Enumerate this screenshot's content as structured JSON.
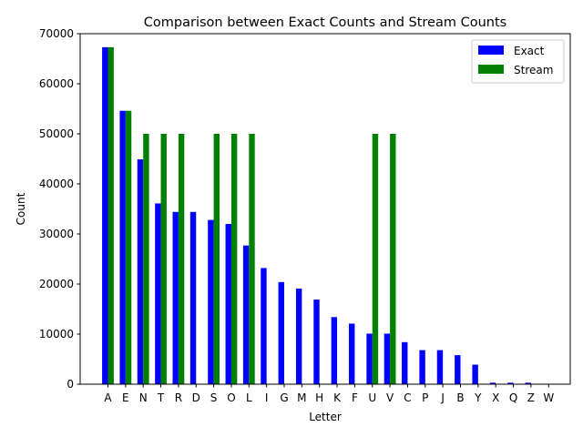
{
  "chart_data": {
    "type": "bar",
    "title": "Comparison between Exact Counts and Stream Counts",
    "xlabel": "Letter",
    "ylabel": "Count",
    "ylim": [
      0,
      70000
    ],
    "yticks": [
      0,
      10000,
      20000,
      30000,
      40000,
      50000,
      60000,
      70000
    ],
    "legend_position": "top-right",
    "categories": [
      "A",
      "E",
      "N",
      "T",
      "R",
      "D",
      "S",
      "O",
      "L",
      "I",
      "G",
      "M",
      "H",
      "K",
      "F",
      "U",
      "V",
      "C",
      "P",
      "J",
      "B",
      "Y",
      "X",
      "Q",
      "Z",
      "W"
    ],
    "series": [
      {
        "name": "Exact",
        "color": "#0000ff",
        "values": [
          67300,
          54600,
          44900,
          36100,
          34400,
          34400,
          32800,
          32000,
          27700,
          23200,
          20400,
          19100,
          16900,
          13400,
          12100,
          10100,
          10100,
          8400,
          6800,
          6800,
          5800,
          3900,
          300,
          300,
          300,
          0
        ]
      },
      {
        "name": "Stream",
        "color": "#008000",
        "values": [
          67300,
          54600,
          50000,
          50000,
          50000,
          0,
          50000,
          50000,
          50000,
          0,
          0,
          0,
          0,
          0,
          0,
          50000,
          50000,
          0,
          0,
          0,
          0,
          0,
          0,
          0,
          0,
          0
        ]
      }
    ]
  }
}
